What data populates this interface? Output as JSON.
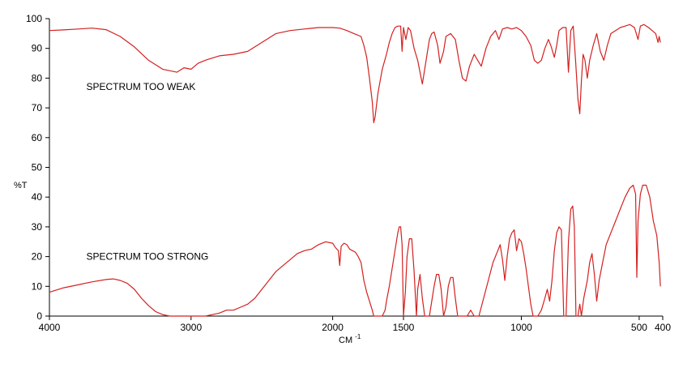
{
  "chart_data": {
    "type": "line",
    "title": "",
    "xlabel": "CM",
    "xlabel_superscript": "-1",
    "ylabel": "%T",
    "xlim": [
      4000,
      400
    ],
    "ylim": [
      0,
      100
    ],
    "x_ticks": [
      4000,
      3000,
      2000,
      1500,
      1000,
      500,
      400
    ],
    "x_tick_labels": [
      "4000",
      "3000",
      "2000",
      "1500",
      "1000",
      "500",
      "400"
    ],
    "y_ticks": [
      0,
      10,
      20,
      30,
      40,
      50,
      60,
      70,
      80,
      90,
      100
    ],
    "y_tick_labels": [
      "0",
      "10",
      "20",
      "30",
      "40",
      "50",
      "60",
      "70",
      "80",
      "90",
      "100"
    ],
    "grid": false,
    "line_color": "#d42020",
    "annotations": [
      {
        "text": "SPECTRUM TOO WEAK",
        "x": 3740,
        "y": 76
      },
      {
        "text": "SPECTRUM TOO STRONG",
        "x": 3740,
        "y": 19
      }
    ],
    "series": [
      {
        "points": [
          [
            4000,
            96
          ],
          [
            3900,
            96.2
          ],
          [
            3800,
            96.5
          ],
          [
            3700,
            96.8
          ],
          [
            3600,
            96.3
          ],
          [
            3500,
            94
          ],
          [
            3400,
            90.5
          ],
          [
            3300,
            86
          ],
          [
            3200,
            83
          ],
          [
            3100,
            82
          ],
          [
            3050,
            83.5
          ],
          [
            3000,
            83
          ],
          [
            2950,
            85
          ],
          [
            2900,
            86
          ],
          [
            2800,
            87.5
          ],
          [
            2700,
            88
          ],
          [
            2600,
            89
          ],
          [
            2500,
            92
          ],
          [
            2400,
            95
          ],
          [
            2300,
            96
          ],
          [
            2200,
            96.5
          ],
          [
            2100,
            97
          ],
          [
            2000,
            97
          ],
          [
            1950,
            96.8
          ],
          [
            1900,
            96
          ],
          [
            1850,
            95
          ],
          [
            1800,
            94
          ],
          [
            1780,
            91
          ],
          [
            1760,
            87
          ],
          [
            1740,
            80
          ],
          [
            1720,
            72
          ],
          [
            1710,
            65
          ],
          [
            1700,
            67
          ],
          [
            1680,
            75
          ],
          [
            1650,
            83
          ],
          [
            1620,
            88
          ],
          [
            1600,
            92
          ],
          [
            1580,
            95
          ],
          [
            1560,
            97
          ],
          [
            1540,
            97.5
          ],
          [
            1520,
            97.5
          ],
          [
            1510,
            89
          ],
          [
            1500,
            97
          ],
          [
            1490,
            93
          ],
          [
            1480,
            97
          ],
          [
            1470,
            96
          ],
          [
            1455,
            90
          ],
          [
            1440,
            86
          ],
          [
            1420,
            78
          ],
          [
            1400,
            88
          ],
          [
            1390,
            93
          ],
          [
            1380,
            95
          ],
          [
            1370,
            95.5
          ],
          [
            1355,
            91
          ],
          [
            1345,
            85
          ],
          [
            1330,
            89
          ],
          [
            1320,
            94
          ],
          [
            1300,
            95
          ],
          [
            1280,
            93
          ],
          [
            1265,
            86
          ],
          [
            1250,
            80
          ],
          [
            1235,
            79
          ],
          [
            1220,
            84
          ],
          [
            1200,
            88
          ],
          [
            1185,
            86
          ],
          [
            1170,
            84
          ],
          [
            1150,
            90
          ],
          [
            1130,
            94
          ],
          [
            1110,
            96
          ],
          [
            1095,
            93
          ],
          [
            1080,
            96.5
          ],
          [
            1060,
            97
          ],
          [
            1040,
            96.5
          ],
          [
            1020,
            97
          ],
          [
            1000,
            96
          ],
          [
            980,
            94
          ],
          [
            960,
            91
          ],
          [
            945,
            86
          ],
          [
            930,
            85
          ],
          [
            915,
            86
          ],
          [
            900,
            90
          ],
          [
            885,
            93
          ],
          [
            875,
            91
          ],
          [
            860,
            87
          ],
          [
            850,
            91
          ],
          [
            840,
            96
          ],
          [
            825,
            97
          ],
          [
            810,
            97
          ],
          [
            800,
            82
          ],
          [
            790,
            96
          ],
          [
            780,
            97.5
          ],
          [
            770,
            86
          ],
          [
            760,
            73
          ],
          [
            752,
            68
          ],
          [
            745,
            79
          ],
          [
            738,
            88
          ],
          [
            730,
            86
          ],
          [
            720,
            80
          ],
          [
            710,
            86
          ],
          [
            695,
            91
          ],
          [
            680,
            95
          ],
          [
            665,
            89
          ],
          [
            650,
            86
          ],
          [
            635,
            91
          ],
          [
            620,
            95
          ],
          [
            600,
            96
          ],
          [
            580,
            97
          ],
          [
            560,
            97.5
          ],
          [
            540,
            98
          ],
          [
            520,
            97
          ],
          [
            505,
            93
          ],
          [
            495,
            97.5
          ],
          [
            480,
            98
          ],
          [
            460,
            97
          ],
          [
            445,
            96
          ],
          [
            430,
            95
          ],
          [
            420,
            92
          ],
          [
            415,
            94
          ],
          [
            410,
            92
          ]
        ]
      },
      {
        "points": [
          [
            4000,
            8
          ],
          [
            3900,
            9.5
          ],
          [
            3800,
            10.5
          ],
          [
            3700,
            11.5
          ],
          [
            3600,
            12.3
          ],
          [
            3550,
            12.5
          ],
          [
            3500,
            12
          ],
          [
            3450,
            11
          ],
          [
            3400,
            9
          ],
          [
            3350,
            6
          ],
          [
            3300,
            3.5
          ],
          [
            3250,
            1.5
          ],
          [
            3200,
            0.5
          ],
          [
            3150,
            0
          ],
          [
            3100,
            0
          ],
          [
            3000,
            0
          ],
          [
            2900,
            0
          ],
          [
            2850,
            0.5
          ],
          [
            2800,
            1
          ],
          [
            2750,
            2
          ],
          [
            2700,
            2
          ],
          [
            2650,
            3
          ],
          [
            2600,
            4
          ],
          [
            2550,
            6
          ],
          [
            2500,
            9
          ],
          [
            2450,
            12
          ],
          [
            2400,
            15
          ],
          [
            2350,
            17
          ],
          [
            2300,
            19
          ],
          [
            2250,
            21
          ],
          [
            2200,
            22
          ],
          [
            2150,
            22.5
          ],
          [
            2100,
            24
          ],
          [
            2050,
            25
          ],
          [
            2000,
            24.5
          ],
          [
            1980,
            23
          ],
          [
            1960,
            22
          ],
          [
            1950,
            17
          ],
          [
            1940,
            23.5
          ],
          [
            1920,
            24.5
          ],
          [
            1900,
            24
          ],
          [
            1880,
            22.5
          ],
          [
            1860,
            22
          ],
          [
            1840,
            21.5
          ],
          [
            1820,
            20
          ],
          [
            1800,
            18
          ],
          [
            1780,
            12
          ],
          [
            1760,
            8
          ],
          [
            1740,
            5
          ],
          [
            1720,
            2
          ],
          [
            1710,
            0
          ],
          [
            1680,
            0
          ],
          [
            1650,
            0
          ],
          [
            1630,
            2
          ],
          [
            1620,
            5
          ],
          [
            1600,
            10
          ],
          [
            1580,
            16
          ],
          [
            1560,
            22
          ],
          [
            1540,
            28
          ],
          [
            1530,
            30
          ],
          [
            1520,
            30
          ],
          [
            1510,
            24
          ],
          [
            1500,
            0
          ],
          [
            1492,
            8
          ],
          [
            1485,
            20
          ],
          [
            1475,
            26
          ],
          [
            1465,
            26
          ],
          [
            1455,
            15
          ],
          [
            1445,
            0
          ],
          [
            1440,
            9
          ],
          [
            1430,
            14
          ],
          [
            1420,
            6
          ],
          [
            1410,
            0
          ],
          [
            1390,
            0
          ],
          [
            1380,
            5
          ],
          [
            1370,
            10
          ],
          [
            1360,
            14
          ],
          [
            1350,
            14
          ],
          [
            1340,
            9
          ],
          [
            1330,
            0
          ],
          [
            1320,
            3
          ],
          [
            1310,
            10
          ],
          [
            1300,
            13
          ],
          [
            1290,
            13
          ],
          [
            1280,
            6
          ],
          [
            1270,
            0
          ],
          [
            1250,
            0
          ],
          [
            1230,
            0
          ],
          [
            1215,
            2
          ],
          [
            1200,
            0
          ],
          [
            1180,
            0
          ],
          [
            1160,
            6
          ],
          [
            1140,
            12
          ],
          [
            1120,
            18
          ],
          [
            1100,
            22
          ],
          [
            1090,
            24
          ],
          [
            1080,
            19
          ],
          [
            1070,
            12
          ],
          [
            1060,
            20
          ],
          [
            1050,
            26
          ],
          [
            1040,
            28
          ],
          [
            1030,
            29
          ],
          [
            1020,
            22
          ],
          [
            1010,
            26
          ],
          [
            1000,
            25
          ],
          [
            990,
            21
          ],
          [
            980,
            16
          ],
          [
            970,
            10
          ],
          [
            960,
            4
          ],
          [
            950,
            0
          ],
          [
            930,
            0
          ],
          [
            915,
            2
          ],
          [
            900,
            6
          ],
          [
            890,
            9
          ],
          [
            880,
            5
          ],
          [
            870,
            12
          ],
          [
            860,
            22
          ],
          [
            850,
            28
          ],
          [
            840,
            30
          ],
          [
            830,
            29
          ],
          [
            820,
            0
          ],
          [
            810,
            0
          ],
          [
            800,
            25
          ],
          [
            790,
            36
          ],
          [
            782,
            37
          ],
          [
            775,
            30
          ],
          [
            768,
            0
          ],
          [
            760,
            0
          ],
          [
            752,
            4
          ],
          [
            745,
            0
          ],
          [
            735,
            6
          ],
          [
            720,
            12
          ],
          [
            710,
            18
          ],
          [
            700,
            21
          ],
          [
            690,
            14
          ],
          [
            680,
            5
          ],
          [
            670,
            12
          ],
          [
            655,
            18
          ],
          [
            640,
            24
          ],
          [
            620,
            28
          ],
          [
            600,
            32
          ],
          [
            580,
            36
          ],
          [
            560,
            40
          ],
          [
            540,
            43
          ],
          [
            525,
            44
          ],
          [
            515,
            41
          ],
          [
            510,
            13
          ],
          [
            505,
            32
          ],
          [
            495,
            41
          ],
          [
            485,
            44
          ],
          [
            470,
            44
          ],
          [
            455,
            40
          ],
          [
            440,
            32
          ],
          [
            425,
            27
          ],
          [
            415,
            18
          ],
          [
            410,
            10
          ]
        ]
      }
    ]
  }
}
